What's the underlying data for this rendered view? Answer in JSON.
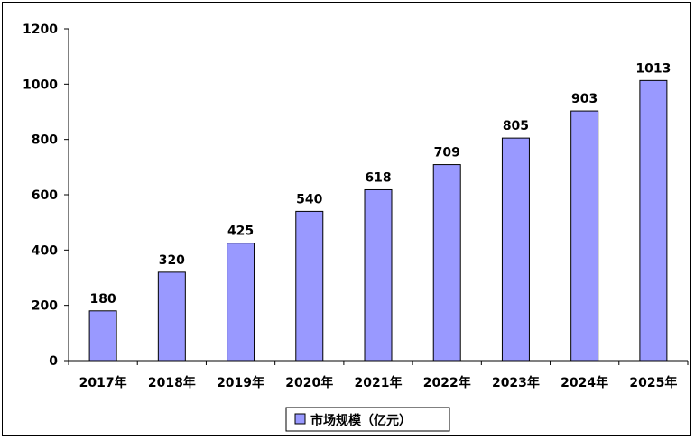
{
  "chart_data": {
    "type": "bar",
    "categories": [
      "2017年",
      "2018年",
      "2019年",
      "2020年",
      "2021年",
      "2022年",
      "2023年",
      "2024年",
      "2025年"
    ],
    "series": [
      {
        "name": "市场规模（亿元）",
        "values": [
          180,
          320,
          425,
          540,
          618,
          709,
          805,
          903,
          1013
        ],
        "color": "#9999ff"
      }
    ],
    "title": "",
    "xlabel": "",
    "ylabel": "",
    "ylim": [
      0,
      1200
    ],
    "yticks": [
      0,
      200,
      400,
      600,
      800,
      1000,
      1200
    ],
    "data_labels": true,
    "grid": false,
    "legend_position": "bottom"
  }
}
